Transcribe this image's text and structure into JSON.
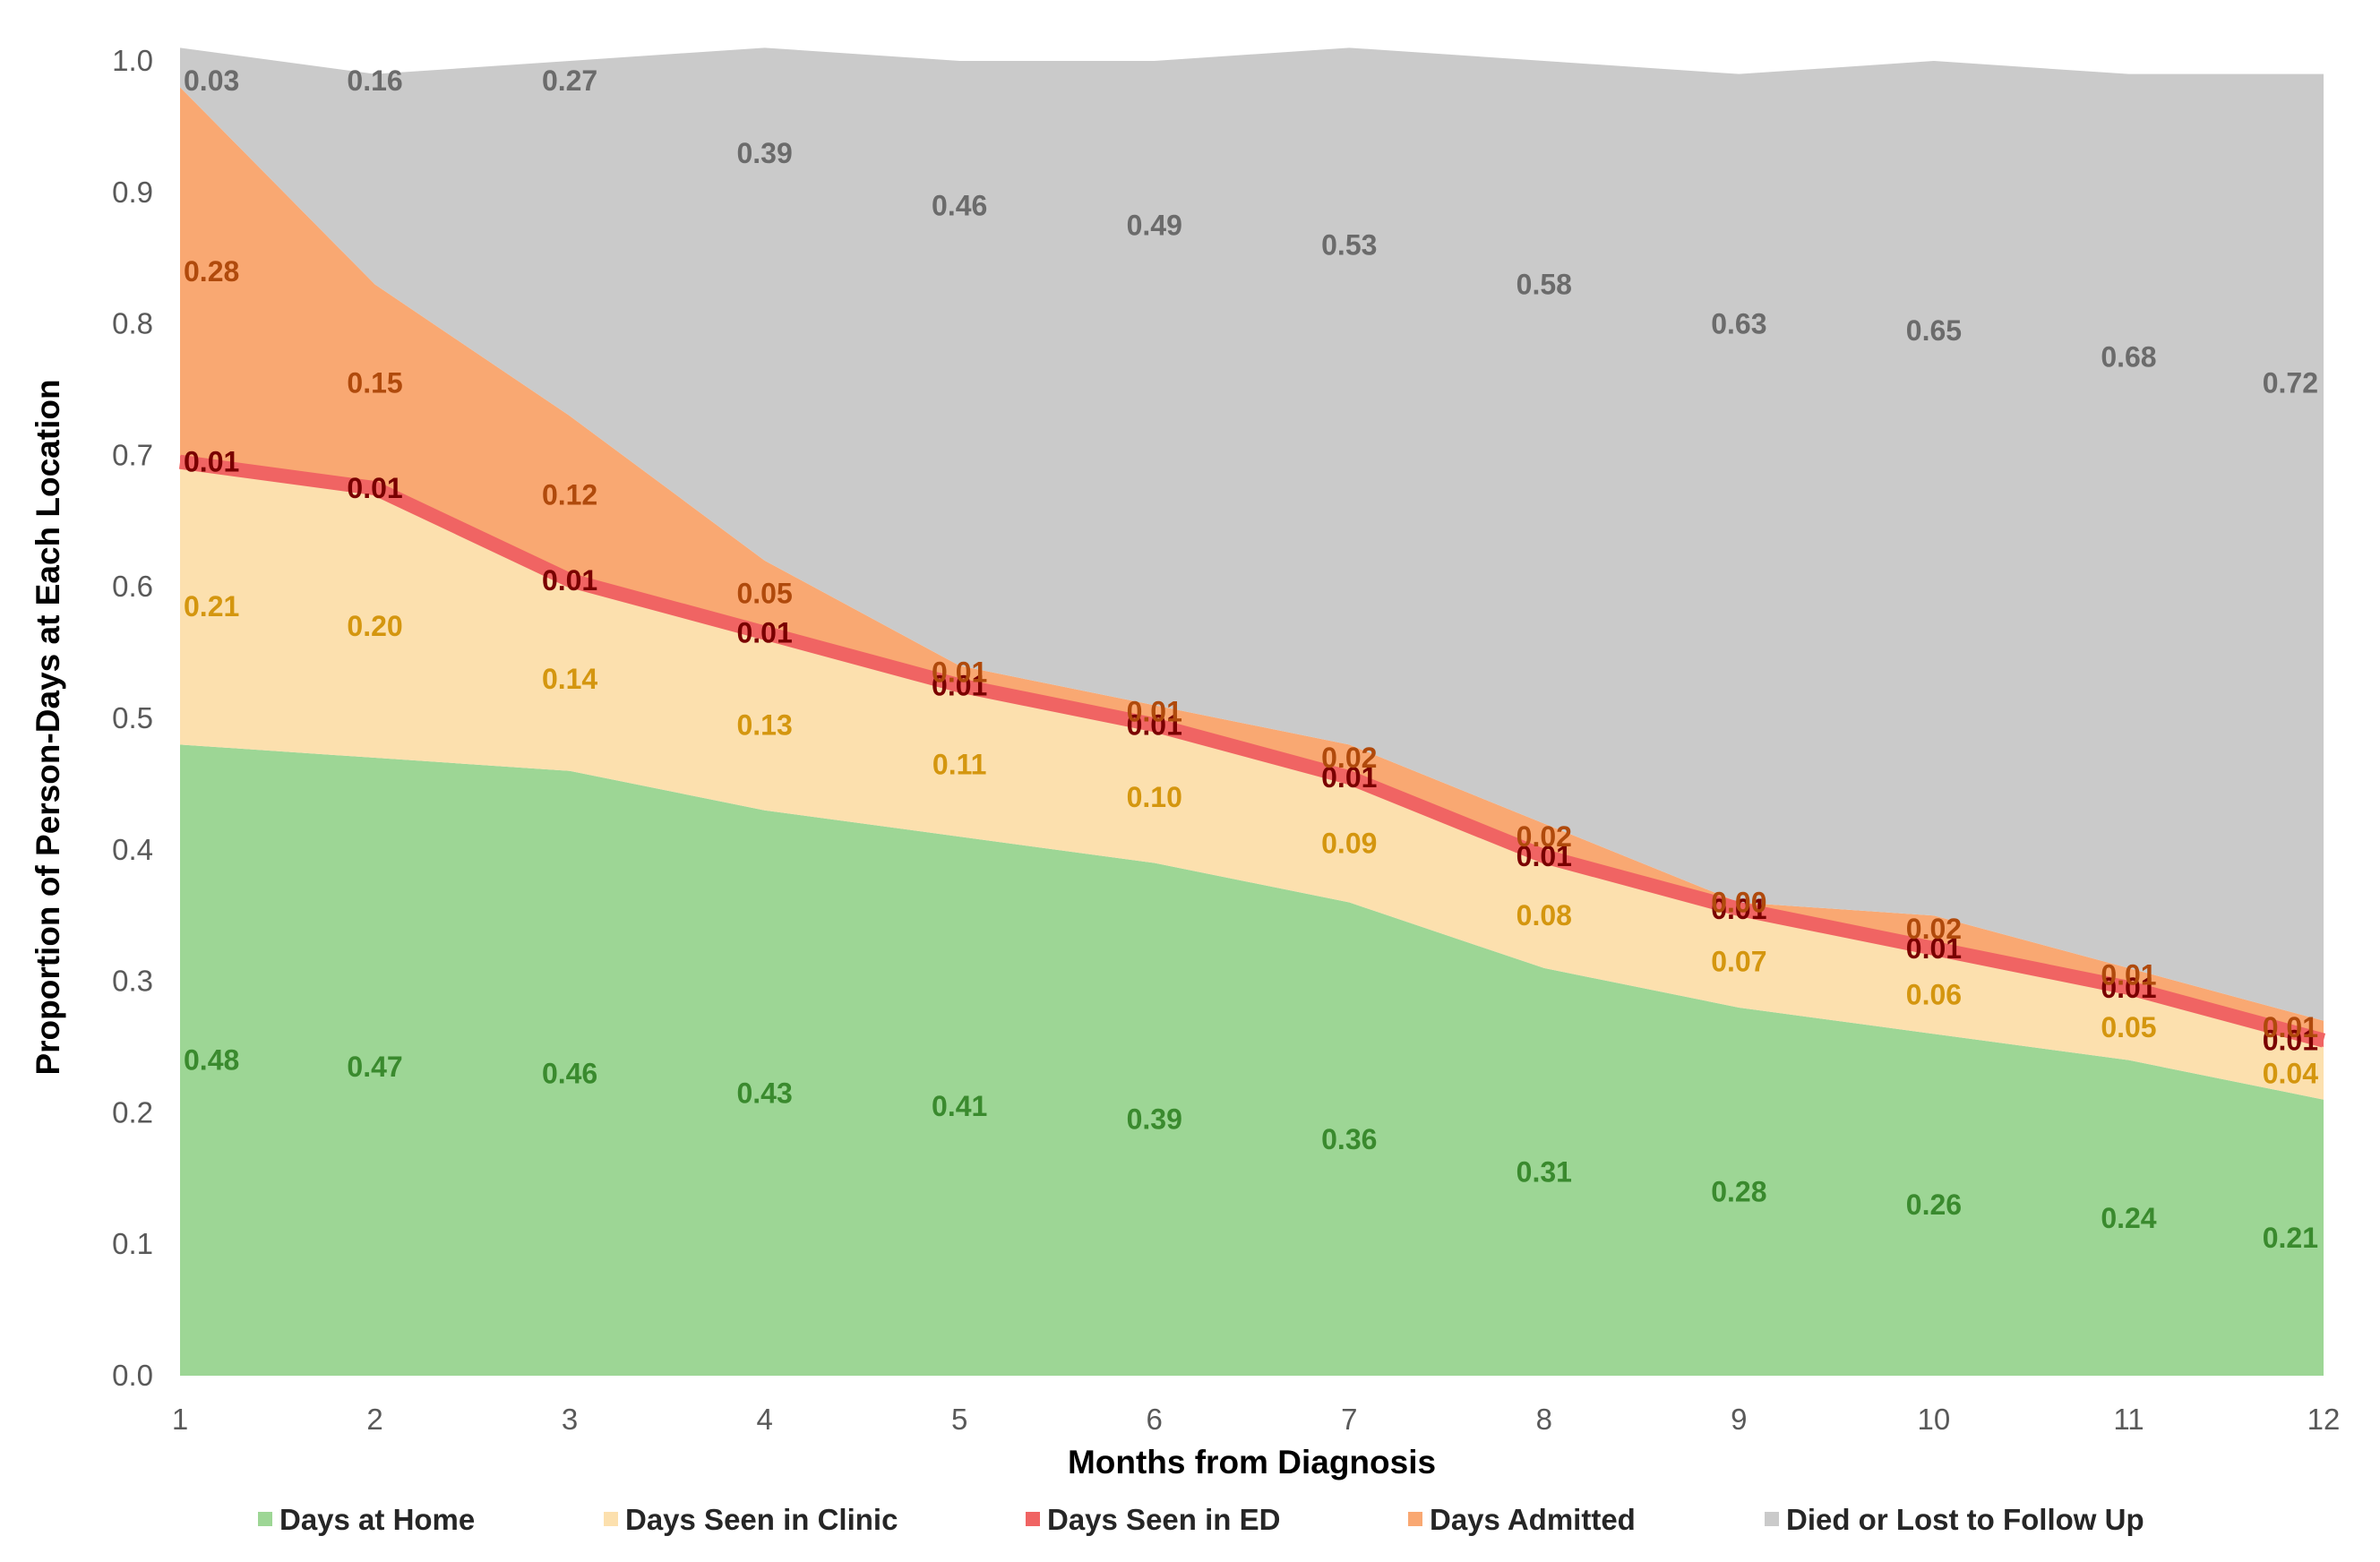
{
  "chart_data": {
    "type": "area",
    "stacked": true,
    "title": "",
    "xlabel": "Months from Diagnosis",
    "ylabel": "Proportion of Person-Days at Each Location",
    "xlim": [
      1,
      12
    ],
    "ylim": [
      0,
      1
    ],
    "x": [
      1,
      2,
      3,
      4,
      5,
      6,
      7,
      8,
      9,
      10,
      11,
      12
    ],
    "x_tick_labels": [
      "1",
      "2",
      "3",
      "4",
      "5",
      "6",
      "7",
      "8",
      "9",
      "10",
      "11",
      "12"
    ],
    "y_tick_labels": [
      "0.0",
      "0.1",
      "0.2",
      "0.3",
      "0.4",
      "0.5",
      "0.6",
      "0.7",
      "0.8",
      "0.9",
      "1.0"
    ],
    "y_ticks": [
      0,
      0.1,
      0.2,
      0.3,
      0.4,
      0.5,
      0.6,
      0.7,
      0.8,
      0.9,
      1.0
    ],
    "grid": false,
    "legend_position": "bottom",
    "series": [
      {
        "name": "Days at Home",
        "color": "#9dd695",
        "label_color": "#3a8a2e",
        "values": [
          0.48,
          0.47,
          0.46,
          0.43,
          0.41,
          0.39,
          0.36,
          0.31,
          0.28,
          0.26,
          0.24,
          0.21
        ],
        "labels": [
          "0.48",
          "0.47",
          "0.46",
          "0.43",
          "0.41",
          "0.39",
          "0.36",
          "0.31",
          "0.28",
          "0.26",
          "0.24",
          "0.21"
        ]
      },
      {
        "name": "Days Seen in Clinic",
        "color": "#fce0ae",
        "label_color": "#d4960f",
        "values": [
          0.21,
          0.2,
          0.14,
          0.13,
          0.11,
          0.1,
          0.09,
          0.08,
          0.07,
          0.06,
          0.05,
          0.04
        ],
        "labels": [
          "0.21",
          "0.20",
          "0.14",
          "0.13",
          "0.11",
          "0.10",
          "0.09",
          "0.08",
          "0.07",
          "0.06",
          "0.05",
          "0.04"
        ]
      },
      {
        "name": "Days Seen in ED",
        "color": "#f06463",
        "label_color": "#7a0000",
        "values": [
          0.01,
          0.01,
          0.01,
          0.01,
          0.01,
          0.01,
          0.01,
          0.01,
          0.01,
          0.01,
          0.01,
          0.01
        ],
        "labels": [
          "0.01",
          "0.01",
          "0.01",
          "0.01",
          "0.01",
          "0.01",
          "0.01",
          "0.01",
          "0.01",
          "0.01",
          "0.01",
          "0.01"
        ]
      },
      {
        "name": "Days Admitted",
        "color": "#f9a872",
        "label_color": "#b04a0c",
        "values": [
          0.28,
          0.15,
          0.12,
          0.05,
          0.01,
          0.01,
          0.02,
          0.02,
          0.0,
          0.02,
          0.01,
          0.01
        ],
        "labels": [
          "0.28",
          "0.15",
          "0.12",
          "0.05",
          "0.01",
          "0.01",
          "0.02",
          "0.02",
          "0.00",
          "0.02",
          "0.01",
          "0.01"
        ]
      },
      {
        "name": "Died or Lost to Follow Up",
        "color": "#cacaca",
        "label_color": "#6b6b6b",
        "values": [
          0.03,
          0.16,
          0.27,
          0.39,
          0.46,
          0.49,
          0.53,
          0.58,
          0.63,
          0.65,
          0.68,
          0.72
        ],
        "labels": [
          "0.03",
          "0.16",
          "0.27",
          "0.39",
          "0.46",
          "0.49",
          "0.53",
          "0.58",
          "0.63",
          "0.65",
          "0.68",
          "0.72"
        ]
      }
    ]
  }
}
